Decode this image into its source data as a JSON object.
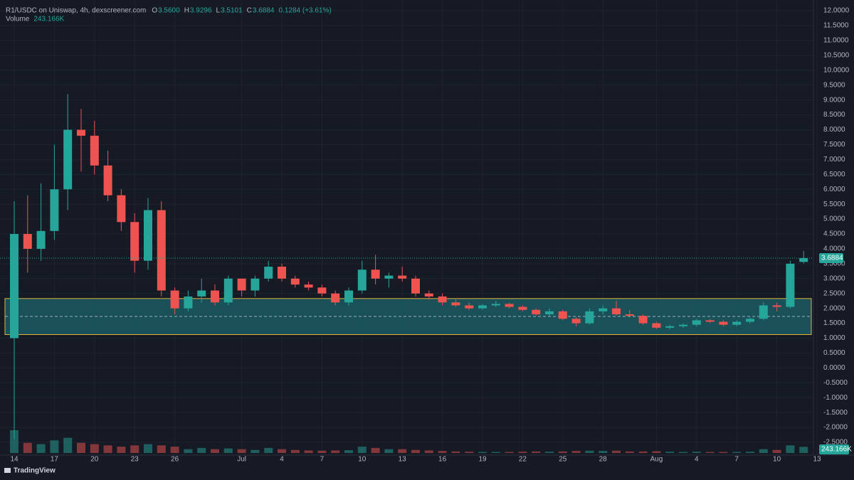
{
  "header": {
    "symbol": "R1/USDC on Uniswap, 4h, dexscreener.com",
    "ohlc": [
      {
        "label": "O",
        "value": "3.5600"
      },
      {
        "label": "H",
        "value": "3.9296"
      },
      {
        "label": "L",
        "value": "3.5101"
      },
      {
        "label": "C",
        "value": "3.6884"
      }
    ],
    "change": "0.1284 (+3.61%)",
    "volume_title": "Volume",
    "volume_value": "243.166K"
  },
  "footer": {
    "brand": "TradingView"
  },
  "chart_data": {
    "type": "candlestick",
    "up_color": "#26a69a",
    "down_color": "#ef5350",
    "categories": [
      "14",
      null,
      null,
      "17",
      null,
      null,
      "20",
      null,
      null,
      "23",
      null,
      null,
      "26",
      null,
      null,
      null,
      null,
      "Jul",
      null,
      null,
      "4",
      null,
      null,
      "7",
      null,
      null,
      "10",
      null,
      null,
      "13",
      null,
      null,
      "16",
      null,
      null,
      "19",
      null,
      null,
      "22",
      null,
      null,
      "25",
      null,
      null,
      "28",
      null,
      null,
      null,
      "Aug",
      null,
      null,
      "4",
      null,
      null,
      "7",
      null,
      null,
      "10",
      null,
      null,
      "13"
    ],
    "open": [
      1.0,
      4.5,
      4.0,
      4.6,
      6.0,
      8.0,
      7.8,
      6.8,
      5.8,
      4.9,
      3.6,
      5.3,
      2.6,
      2.0,
      2.4,
      2.6,
      2.2,
      3.0,
      2.6,
      3.0,
      3.4,
      3.0,
      2.8,
      2.7,
      2.5,
      2.2,
      2.6,
      3.3,
      3.0,
      3.1,
      3.0,
      2.5,
      2.4,
      2.2,
      2.1,
      2.0,
      2.1,
      2.15,
      2.05,
      1.95,
      1.8,
      1.9,
      1.65,
      1.5,
      1.9,
      2.0,
      1.8,
      1.75,
      1.5,
      1.35,
      1.4,
      1.45,
      1.6,
      1.55,
      1.45,
      1.55,
      1.65,
      2.1,
      2.05,
      3.56,
      null
    ],
    "high": [
      5.6,
      5.8,
      6.2,
      7.5,
      9.2,
      8.7,
      8.3,
      7.3,
      6.0,
      5.2,
      5.7,
      5.6,
      2.7,
      2.6,
      3.0,
      2.8,
      3.1,
      3.0,
      3.1,
      3.6,
      3.5,
      3.1,
      2.9,
      2.8,
      2.6,
      2.7,
      3.6,
      3.8,
      3.2,
      3.4,
      3.1,
      2.6,
      2.5,
      2.3,
      2.2,
      2.15,
      2.25,
      2.2,
      2.1,
      2.0,
      2.0,
      1.95,
      1.7,
      2.0,
      2.1,
      2.25,
      1.95,
      1.8,
      1.55,
      1.45,
      1.5,
      1.65,
      1.65,
      1.6,
      1.6,
      1.7,
      2.2,
      2.2,
      3.6,
      3.9296,
      null
    ],
    "low": [
      -2.4,
      3.2,
      3.6,
      4.3,
      5.3,
      6.6,
      6.5,
      5.6,
      4.6,
      3.2,
      3.3,
      2.4,
      1.8,
      1.9,
      2.2,
      2.1,
      2.1,
      2.4,
      2.4,
      2.9,
      2.9,
      2.7,
      2.6,
      2.4,
      2.1,
      2.1,
      2.5,
      2.8,
      2.7,
      2.9,
      2.4,
      2.3,
      2.1,
      2.05,
      1.95,
      1.95,
      2.05,
      2.0,
      1.9,
      1.75,
      1.75,
      1.6,
      1.4,
      1.45,
      1.8,
      1.75,
      1.7,
      1.45,
      1.3,
      1.3,
      1.35,
      1.4,
      1.5,
      1.4,
      1.4,
      1.5,
      1.6,
      1.9,
      2.0,
      3.5101,
      null
    ],
    "close": [
      4.5,
      4.0,
      4.6,
      6.0,
      8.0,
      7.8,
      6.8,
      5.8,
      4.9,
      3.6,
      5.3,
      2.6,
      2.0,
      2.4,
      2.6,
      2.2,
      3.0,
      2.6,
      3.0,
      3.4,
      3.0,
      2.8,
      2.7,
      2.5,
      2.2,
      2.6,
      3.3,
      3.0,
      3.1,
      3.0,
      2.5,
      2.4,
      2.2,
      2.1,
      2.0,
      2.1,
      2.15,
      2.05,
      1.95,
      1.8,
      1.9,
      1.65,
      1.5,
      1.9,
      2.0,
      1.8,
      1.75,
      1.5,
      1.35,
      1.4,
      1.45,
      1.6,
      1.55,
      1.45,
      1.55,
      1.65,
      2.1,
      2.05,
      3.5,
      3.6884,
      null
    ],
    "volume": [
      900,
      400,
      350,
      500,
      600,
      400,
      350,
      300,
      250,
      300,
      350,
      300,
      250,
      150,
      200,
      150,
      180,
      150,
      120,
      200,
      150,
      120,
      100,
      90,
      100,
      110,
      250,
      200,
      150,
      150,
      120,
      100,
      80,
      60,
      50,
      40,
      40,
      40,
      50,
      60,
      50,
      60,
      80,
      90,
      80,
      90,
      60,
      60,
      70,
      50,
      40,
      50,
      40,
      40,
      40,
      50,
      150,
      120,
      300,
      243.166,
      null
    ],
    "last_price": {
      "value": 3.6884,
      "label": "3.6884"
    },
    "volume_label": "243.166K",
    "zone": {
      "low": 1.12,
      "high": 2.33,
      "mid": 1.73,
      "fill": "#1b5a62",
      "border": "#e0b33a"
    },
    "ylim": [
      -2.93,
      12.36
    ],
    "yticks": [
      {
        "value": -2.5,
        "label": "-2.5000"
      },
      {
        "value": -2,
        "label": "-2.0000"
      },
      {
        "value": -1.5,
        "label": "-1.5000"
      },
      {
        "value": -1,
        "label": "-1.0000"
      },
      {
        "value": -0.5,
        "label": "-0.5000"
      },
      {
        "value": 0,
        "label": "0.0000"
      },
      {
        "value": 0.5,
        "label": "0.5000"
      },
      {
        "value": 1,
        "label": "1.0000"
      },
      {
        "value": 1.5,
        "label": "1.5000"
      },
      {
        "value": 2,
        "label": "2.0000"
      },
      {
        "value": 2.5,
        "label": "2.5000"
      },
      {
        "value": 3,
        "label": "3.0000"
      },
      {
        "value": 3.5,
        "label": "3.5000"
      },
      {
        "value": 4,
        "label": "4.0000"
      },
      {
        "value": 4.5,
        "label": "4.5000"
      },
      {
        "value": 5,
        "label": "5.0000"
      },
      {
        "value": 5.5,
        "label": "5.5000"
      },
      {
        "value": 6,
        "label": "6.0000"
      },
      {
        "value": 6.5,
        "label": "6.5000"
      },
      {
        "value": 7,
        "label": "7.0000"
      },
      {
        "value": 7.5,
        "label": "7.5000"
      },
      {
        "value": 8,
        "label": "8.0000"
      },
      {
        "value": 8.5,
        "label": "8.5000"
      },
      {
        "value": 9,
        "label": "9.0000"
      },
      {
        "value": 9.5,
        "label": "9.5000"
      },
      {
        "value": 10,
        "label": "10.0000"
      },
      {
        "value": 10.5,
        "label": "10.5000"
      },
      {
        "value": 11,
        "label": "11.0000"
      },
      {
        "value": 11.5,
        "label": "11.5000"
      },
      {
        "value": 12,
        "label": "12.0000"
      }
    ],
    "grid": true
  }
}
